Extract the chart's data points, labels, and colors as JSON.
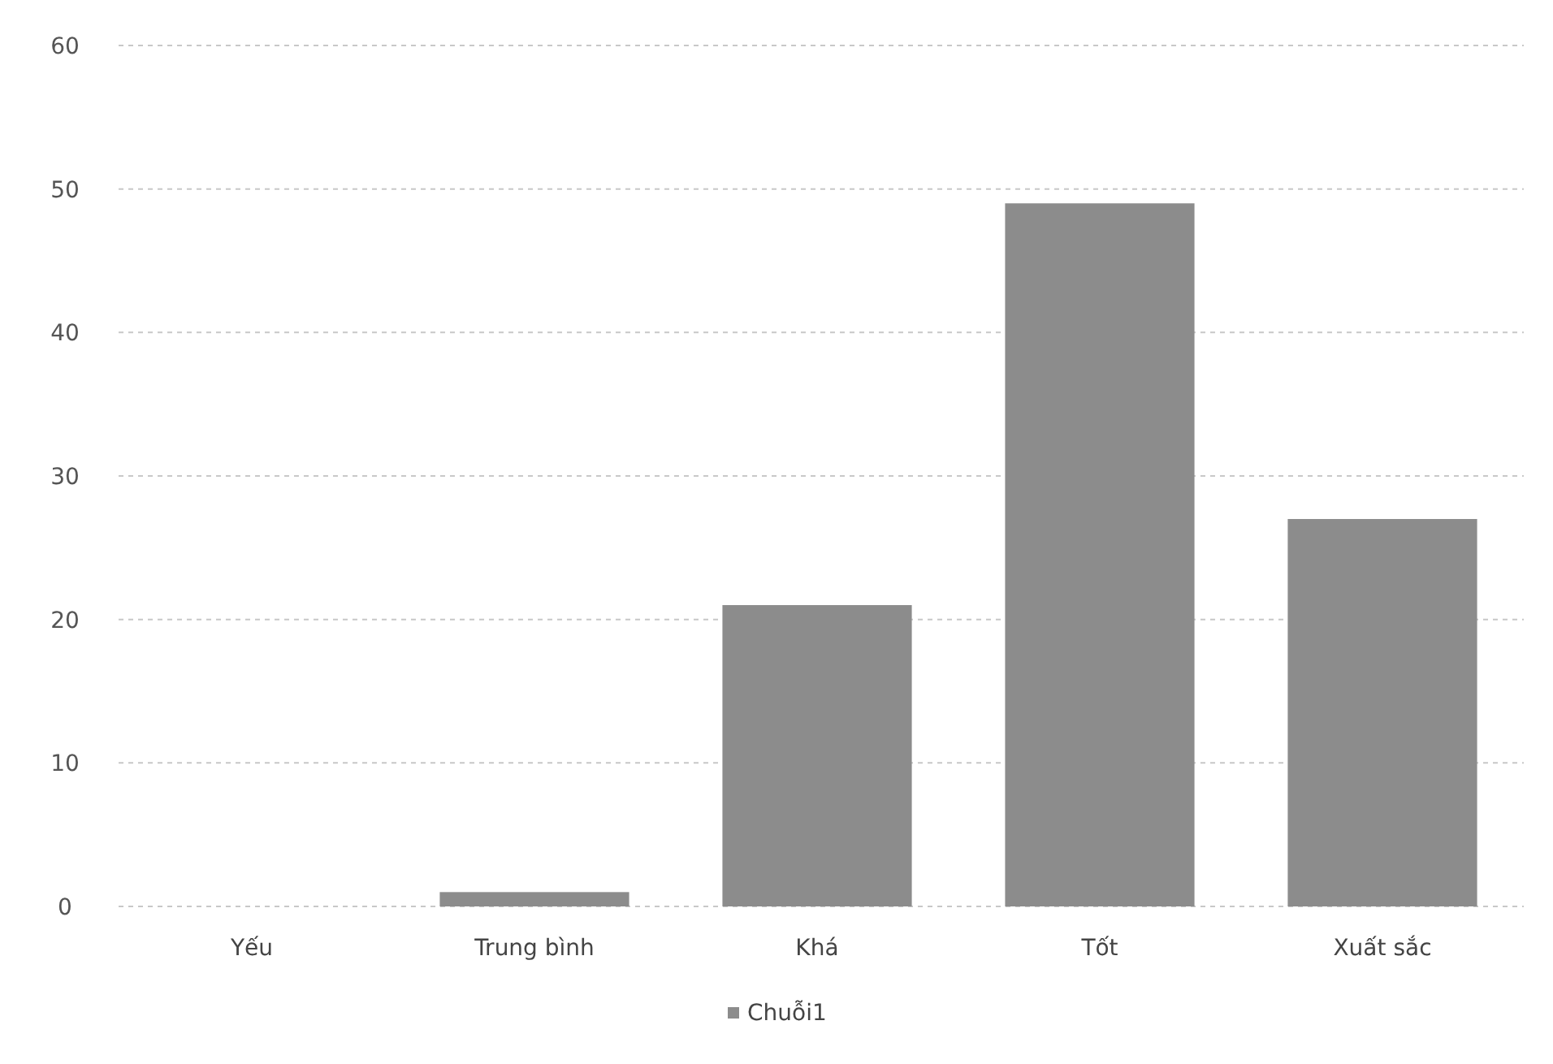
{
  "chart_data": {
    "type": "bar",
    "categories": [
      "Yếu",
      "Trung bình",
      "Khá",
      "Tốt",
      "Xuất sắc"
    ],
    "series": [
      {
        "name": "Chuỗi1",
        "color": "#8c8c8c",
        "values": [
          0,
          1,
          21,
          49,
          27
        ]
      }
    ],
    "ylim": [
      0,
      60
    ],
    "yticks": [
      0,
      10,
      20,
      30,
      40,
      50,
      60
    ],
    "grid": "y",
    "legend": "bottom"
  }
}
